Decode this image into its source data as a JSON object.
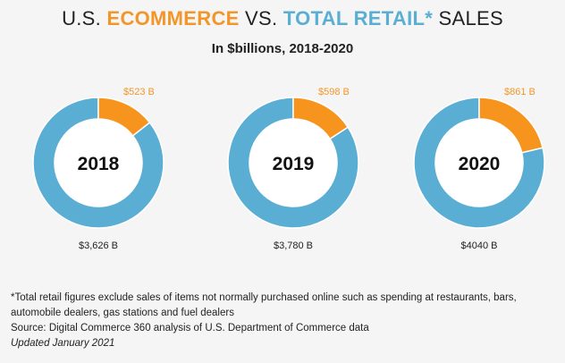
{
  "title": {
    "prefix": "U.S. ",
    "ecommerce": "ECOMMERCE",
    "middle": " VS. ",
    "total_retail": "TOTAL RETAIL*",
    "suffix": " SALES"
  },
  "subtitle": "In $billions, 2018-2020",
  "colors": {
    "ecommerce": "#f7941d",
    "retail": "#5aaed3",
    "ecommerce_label": "#f2962a",
    "year_label": "#111111",
    "value_label": "#222222"
  },
  "chart_data": {
    "type": "pie",
    "title": "U.S. ECOMMERCE VS. TOTAL RETAIL* SALES",
    "subtitle": "In $billions, 2018-2020",
    "unit": "$ billions",
    "charts": [
      {
        "year": "2018",
        "ecommerce": 523,
        "total_retail": 3626,
        "ecommerce_label": "$523 B",
        "total_label": "$3,626 B"
      },
      {
        "year": "2019",
        "ecommerce": 598,
        "total_retail": 3780,
        "ecommerce_label": "$598 B",
        "total_label": "$3,780 B"
      },
      {
        "year": "2020",
        "ecommerce": 861,
        "total_retail": 4040,
        "ecommerce_label": "$861 B",
        "total_label": "$4040 B"
      }
    ]
  },
  "footnote": {
    "line1": "*Total retail figures exclude sales of items not normally purchased online such as spending at restaurants, bars, automobile dealers, gas stations and fuel dealers",
    "source": "Source: Digital Commerce 360 analysis of U.S. Department of Commerce data",
    "updated": "Updated January 2021"
  }
}
